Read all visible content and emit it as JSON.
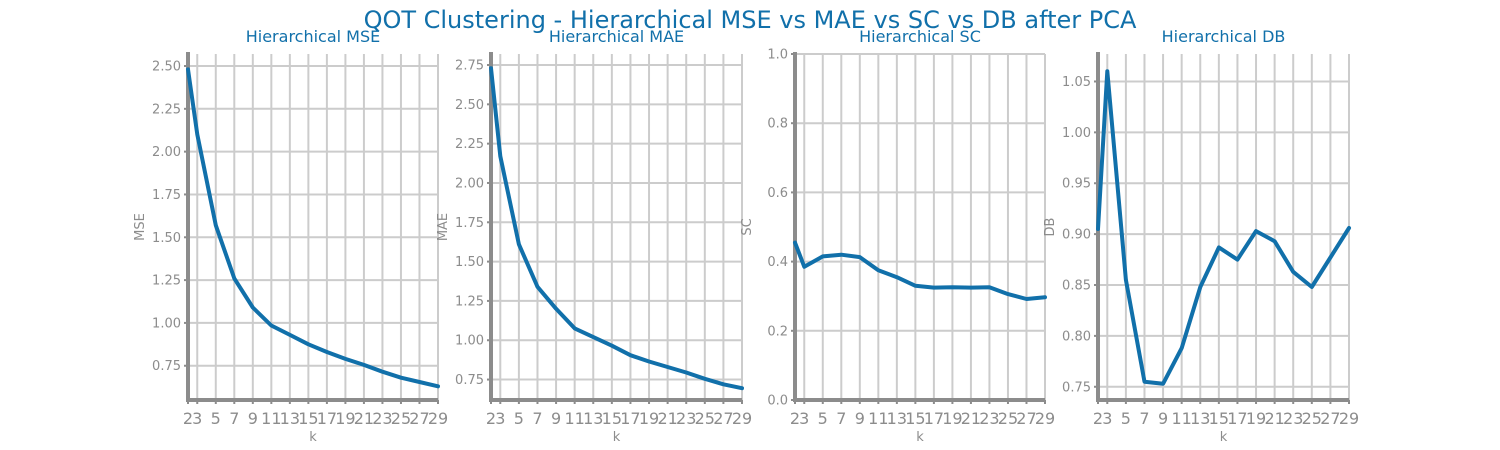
{
  "suptitle": "QOT Clustering - Hierarchical MSE vs MAE vs SC vs DB after PCA",
  "colors": {
    "line": "#1170aa",
    "title": "#1170aa",
    "axis": "#8c8c8c",
    "grid": "#cccccc"
  },
  "chart_data": [
    {
      "type": "line",
      "title": "Hierarchical MSE",
      "xlabel": "k",
      "ylabel": "MSE",
      "x": [
        2,
        3,
        5,
        7,
        9,
        11,
        13,
        15,
        17,
        19,
        21,
        23,
        25,
        27,
        29
      ],
      "y": [
        2.48,
        2.1,
        1.57,
        1.26,
        1.09,
        0.985,
        0.93,
        0.875,
        0.83,
        0.79,
        0.755,
        0.715,
        0.68,
        0.655,
        0.63
      ],
      "xlim": [
        2,
        29
      ],
      "ylim": [
        0.55,
        2.57
      ],
      "xticks": [
        2,
        3,
        5,
        7,
        9,
        11,
        13,
        15,
        17,
        19,
        21,
        23,
        25,
        27,
        29
      ],
      "yticks": [
        0.75,
        1.0,
        1.25,
        1.5,
        1.75,
        2.0,
        2.25,
        2.5
      ],
      "ytick_labels": [
        "0.75",
        "1.00",
        "1.25",
        "1.50",
        "1.75",
        "2.00",
        "2.25",
        "2.50"
      ],
      "grid": true
    },
    {
      "type": "line",
      "title": "Hierarchical MAE",
      "xlabel": "k",
      "ylabel": "MAE",
      "x": [
        2,
        3,
        5,
        7,
        9,
        11,
        13,
        15,
        17,
        19,
        21,
        23,
        25,
        27,
        29
      ],
      "y": [
        2.73,
        2.17,
        1.61,
        1.34,
        1.2,
        1.075,
        1.02,
        0.965,
        0.905,
        0.865,
        0.83,
        0.795,
        0.755,
        0.72,
        0.695
      ],
      "xlim": [
        2,
        29
      ],
      "ylim": [
        0.62,
        2.82
      ],
      "xticks": [
        2,
        3,
        5,
        7,
        9,
        11,
        13,
        15,
        17,
        19,
        21,
        23,
        25,
        27,
        29
      ],
      "yticks": [
        0.75,
        1.0,
        1.25,
        1.5,
        1.75,
        2.0,
        2.25,
        2.5,
        2.75
      ],
      "ytick_labels": [
        "0.75",
        "1.00",
        "1.25",
        "1.50",
        "1.75",
        "2.00",
        "2.25",
        "2.50",
        "2.75"
      ],
      "grid": true
    },
    {
      "type": "line",
      "title": "Hierarchical SC",
      "xlabel": "k",
      "ylabel": "SC",
      "x": [
        2,
        3,
        5,
        7,
        9,
        11,
        13,
        15,
        17,
        19,
        21,
        23,
        25,
        27,
        29
      ],
      "y": [
        0.455,
        0.385,
        0.415,
        0.42,
        0.413,
        0.375,
        0.355,
        0.33,
        0.325,
        0.326,
        0.325,
        0.326,
        0.306,
        0.292,
        0.297
      ],
      "xlim": [
        2,
        29
      ],
      "ylim": [
        0.0,
        1.0
      ],
      "xticks": [
        2,
        3,
        5,
        7,
        9,
        11,
        13,
        15,
        17,
        19,
        21,
        23,
        25,
        27,
        29
      ],
      "yticks": [
        0.0,
        0.2,
        0.4,
        0.6,
        0.8,
        1.0
      ],
      "ytick_labels": [
        "0.0",
        "0.2",
        "0.4",
        "0.6",
        "0.8",
        "1.0"
      ],
      "grid": true
    },
    {
      "type": "line",
      "title": "Hierarchical DB",
      "xlabel": "k",
      "ylabel": "DB",
      "x": [
        2,
        3,
        5,
        7,
        9,
        11,
        13,
        15,
        17,
        19,
        21,
        23,
        25,
        27,
        29
      ],
      "y": [
        0.905,
        1.06,
        0.855,
        0.755,
        0.753,
        0.788,
        0.848,
        0.887,
        0.875,
        0.903,
        0.893,
        0.863,
        0.848,
        0.877,
        0.906
      ],
      "xlim": [
        2,
        29
      ],
      "ylim": [
        0.737,
        1.077
      ],
      "xticks": [
        2,
        3,
        5,
        7,
        9,
        11,
        13,
        15,
        17,
        19,
        21,
        23,
        25,
        27,
        29
      ],
      "yticks": [
        0.75,
        0.8,
        0.85,
        0.9,
        0.95,
        1.0,
        1.05
      ],
      "ytick_labels": [
        "0.75",
        "0.80",
        "0.85",
        "0.90",
        "0.95",
        "1.00",
        "1.05"
      ],
      "grid": true
    }
  ]
}
